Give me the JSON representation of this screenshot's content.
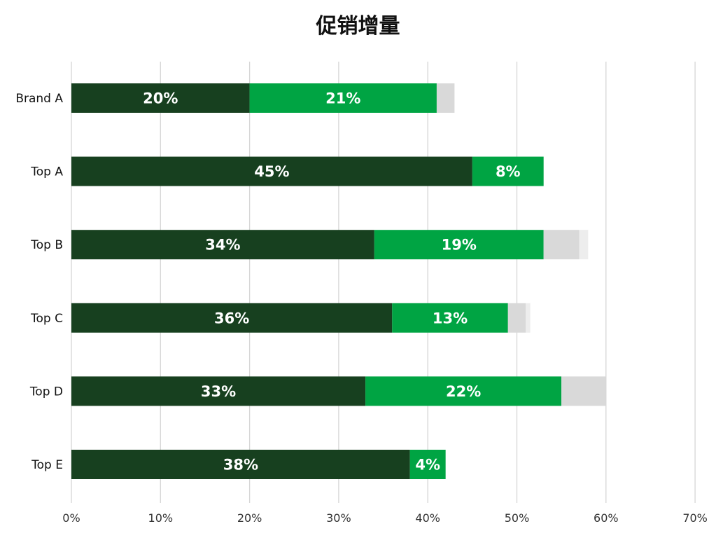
{
  "chart_data": {
    "type": "bar",
    "orientation": "horizontal",
    "stacked": true,
    "title": "促销增量",
    "categories": [
      "Brand A",
      "Top A",
      "Top B",
      "Top C",
      "Top D",
      "Top E"
    ],
    "series": [
      {
        "values": [
          20,
          45,
          34,
          36,
          33,
          38
        ],
        "color": "#17401f",
        "labels": [
          "20%",
          "45%",
          "34%",
          "36%",
          "33%",
          "38%"
        ]
      },
      {
        "values": [
          21,
          8,
          19,
          13,
          22,
          4
        ],
        "color": "#00a443",
        "labels": [
          "21%",
          "8%",
          "19%",
          "13%",
          "22%",
          "4%"
        ]
      },
      {
        "values": [
          2,
          0,
          4,
          2,
          5,
          0
        ],
        "color": "#d9d9d9",
        "labels": []
      },
      {
        "values": [
          0,
          0,
          1,
          0.5,
          0,
          0
        ],
        "color": "#ededed",
        "labels": []
      }
    ],
    "xlim": [
      0,
      70
    ],
    "xticks": [
      "0%",
      "10%",
      "20%",
      "30%",
      "40%",
      "50%",
      "60%",
      "70%"
    ],
    "grid": true,
    "legend": "none"
  }
}
